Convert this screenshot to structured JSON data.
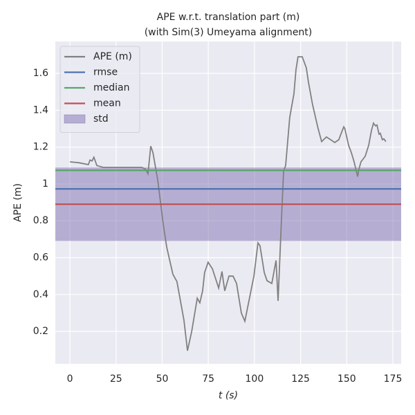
{
  "chart_data": {
    "type": "line",
    "title": "APE w.r.t. translation part (m)",
    "subtitle": "(with Sim(3) Umeyama alignment)",
    "x_label": "t (s)",
    "y_label": "APE (m)",
    "x": [
      0,
      5,
      10,
      10.9,
      12,
      13,
      14.6,
      18,
      25,
      39,
      41,
      42.3,
      43.8,
      45,
      47.6,
      50.6,
      52.5,
      55.8,
      58,
      61.8,
      63.7,
      66,
      69,
      70.4,
      71.9,
      73,
      74.9,
      77.2,
      80.6,
      82.4,
      83.9,
      86.2,
      88.4,
      90.3,
      92.9,
      94.8,
      99.7,
      101.9,
      103,
      105.3,
      106.8,
      109.4,
      111.7,
      112.8,
      114.6,
      115.8,
      116.9,
      119.1,
      121.4,
      122.5,
      123.6,
      125.9,
      128.1,
      129.3,
      131.5,
      134.5,
      136.4,
      139,
      141.3,
      143.5,
      145.7,
      147.2,
      148.4,
      149,
      151,
      152.5,
      154,
      155.9,
      156.6,
      157.7,
      160,
      161.9,
      163.4,
      164.5,
      165.6,
      166.4,
      167.5,
      168.2,
      169.3,
      170.1,
      171.2
    ],
    "series": [
      {
        "name": "APE (m)",
        "color": "#808080",
        "values": [
          1.12,
          1.115,
          1.105,
          1.13,
          1.125,
          1.145,
          1.1,
          1.09,
          1.09,
          1.09,
          1.08,
          1.055,
          1.205,
          1.17,
          1.02,
          0.78,
          0.655,
          0.51,
          0.47,
          0.26,
          0.095,
          0.2,
          0.38,
          0.355,
          0.42,
          0.52,
          0.575,
          0.54,
          0.435,
          0.525,
          0.42,
          0.5,
          0.5,
          0.46,
          0.3,
          0.255,
          0.5,
          0.68,
          0.665,
          0.52,
          0.475,
          0.46,
          0.585,
          0.365,
          0.8,
          1.07,
          1.1,
          1.36,
          1.49,
          1.62,
          1.69,
          1.69,
          1.63,
          1.55,
          1.43,
          1.3,
          1.23,
          1.255,
          1.24,
          1.225,
          1.24,
          1.28,
          1.31,
          1.3,
          1.21,
          1.17,
          1.12,
          1.04,
          1.08,
          1.12,
          1.15,
          1.21,
          1.29,
          1.33,
          1.315,
          1.32,
          1.27,
          1.275,
          1.24,
          1.245,
          1.23
        ]
      }
    ],
    "reference_lines": [
      {
        "name": "rmse",
        "color": "#4c72b0",
        "value": 0.973
      },
      {
        "name": "median",
        "color": "#55a868",
        "value": 1.074
      },
      {
        "name": "mean",
        "color": "#c44e52",
        "value": 0.89
      }
    ],
    "std_band": {
      "name": "std",
      "color": "#8172b2",
      "value": 0.199
    },
    "xlim": [
      -7.9,
      179.5
    ],
    "xticks": [
      0,
      25,
      50,
      75,
      100,
      125,
      150,
      175
    ],
    "ylim": [
      0.024,
      1.773
    ],
    "yticks": [
      0.2,
      0.4,
      0.6,
      0.8,
      1.0,
      1.2,
      1.4,
      1.6
    ],
    "grid": true,
    "legend": "upper left"
  }
}
